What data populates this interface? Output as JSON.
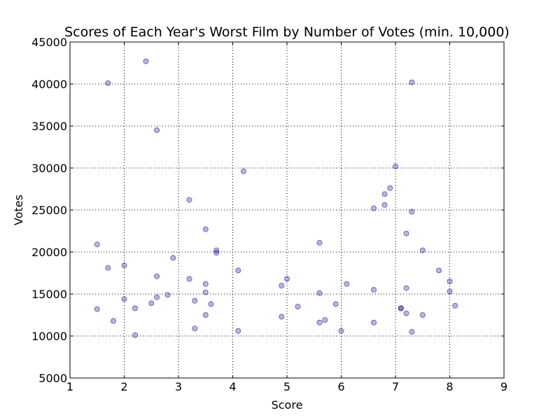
{
  "chart_data": {
    "type": "scatter",
    "title": "Scores of Each Year's Worst Film by Number of Votes (min. 10,000)",
    "xlabel": "Score",
    "ylabel": "Votes",
    "xlim": [
      1,
      9
    ],
    "ylim": [
      5000,
      45000
    ],
    "xticks": [
      1,
      2,
      3,
      4,
      5,
      6,
      7,
      8,
      9
    ],
    "yticks": [
      5000,
      10000,
      15000,
      20000,
      25000,
      30000,
      35000,
      40000,
      45000
    ],
    "xtick_labels": [
      "1",
      "2",
      "3",
      "4",
      "5",
      "6",
      "7",
      "8",
      "9"
    ],
    "ytick_labels": [
      "5000",
      "10000",
      "15000",
      "20000",
      "25000",
      "30000",
      "35000",
      "40000",
      "45000"
    ],
    "grid": true,
    "marker_color": "#0000ff",
    "marker_opacity": 0.3,
    "points": [
      {
        "x": 1.5,
        "y": 20900
      },
      {
        "x": 1.5,
        "y": 13200
      },
      {
        "x": 1.7,
        "y": 40100
      },
      {
        "x": 1.7,
        "y": 18100
      },
      {
        "x": 1.8,
        "y": 11800
      },
      {
        "x": 2.0,
        "y": 18400
      },
      {
        "x": 2.0,
        "y": 14400
      },
      {
        "x": 2.2,
        "y": 13300
      },
      {
        "x": 2.2,
        "y": 10100
      },
      {
        "x": 2.4,
        "y": 42700
      },
      {
        "x": 2.5,
        "y": 13900
      },
      {
        "x": 2.6,
        "y": 34500
      },
      {
        "x": 2.6,
        "y": 17100
      },
      {
        "x": 2.6,
        "y": 14600
      },
      {
        "x": 2.8,
        "y": 14900
      },
      {
        "x": 2.9,
        "y": 19300
      },
      {
        "x": 3.2,
        "y": 26200
      },
      {
        "x": 3.2,
        "y": 16800
      },
      {
        "x": 3.3,
        "y": 14200
      },
      {
        "x": 3.3,
        "y": 10900
      },
      {
        "x": 3.5,
        "y": 22700
      },
      {
        "x": 3.5,
        "y": 16200
      },
      {
        "x": 3.5,
        "y": 15200
      },
      {
        "x": 3.5,
        "y": 12500
      },
      {
        "x": 3.6,
        "y": 13800
      },
      {
        "x": 3.7,
        "y": 20200
      },
      {
        "x": 3.7,
        "y": 19900
      },
      {
        "x": 4.1,
        "y": 17800
      },
      {
        "x": 4.1,
        "y": 10600
      },
      {
        "x": 4.2,
        "y": 29600
      },
      {
        "x": 4.9,
        "y": 16000
      },
      {
        "x": 4.9,
        "y": 12300
      },
      {
        "x": 5.0,
        "y": 16800
      },
      {
        "x": 5.2,
        "y": 13500
      },
      {
        "x": 5.6,
        "y": 21100
      },
      {
        "x": 5.6,
        "y": 15100
      },
      {
        "x": 5.6,
        "y": 11600
      },
      {
        "x": 5.7,
        "y": 11900
      },
      {
        "x": 5.9,
        "y": 13800
      },
      {
        "x": 6.0,
        "y": 10600
      },
      {
        "x": 6.1,
        "y": 16200
      },
      {
        "x": 6.6,
        "y": 25200
      },
      {
        "x": 6.6,
        "y": 15500
      },
      {
        "x": 6.6,
        "y": 11600
      },
      {
        "x": 6.8,
        "y": 26900
      },
      {
        "x": 6.8,
        "y": 25600
      },
      {
        "x": 6.9,
        "y": 27600
      },
      {
        "x": 7.0,
        "y": 30200
      },
      {
        "x": 7.1,
        "y": 13300
      },
      {
        "x": 7.1,
        "y": 13300
      },
      {
        "x": 7.2,
        "y": 22200
      },
      {
        "x": 7.2,
        "y": 15700
      },
      {
        "x": 7.2,
        "y": 12700
      },
      {
        "x": 7.3,
        "y": 40200
      },
      {
        "x": 7.3,
        "y": 24800
      },
      {
        "x": 7.3,
        "y": 10500
      },
      {
        "x": 7.5,
        "y": 20200
      },
      {
        "x": 7.5,
        "y": 12500
      },
      {
        "x": 7.8,
        "y": 17800
      },
      {
        "x": 8.0,
        "y": 16500
      },
      {
        "x": 8.0,
        "y": 15300
      },
      {
        "x": 8.1,
        "y": 13600
      }
    ]
  }
}
